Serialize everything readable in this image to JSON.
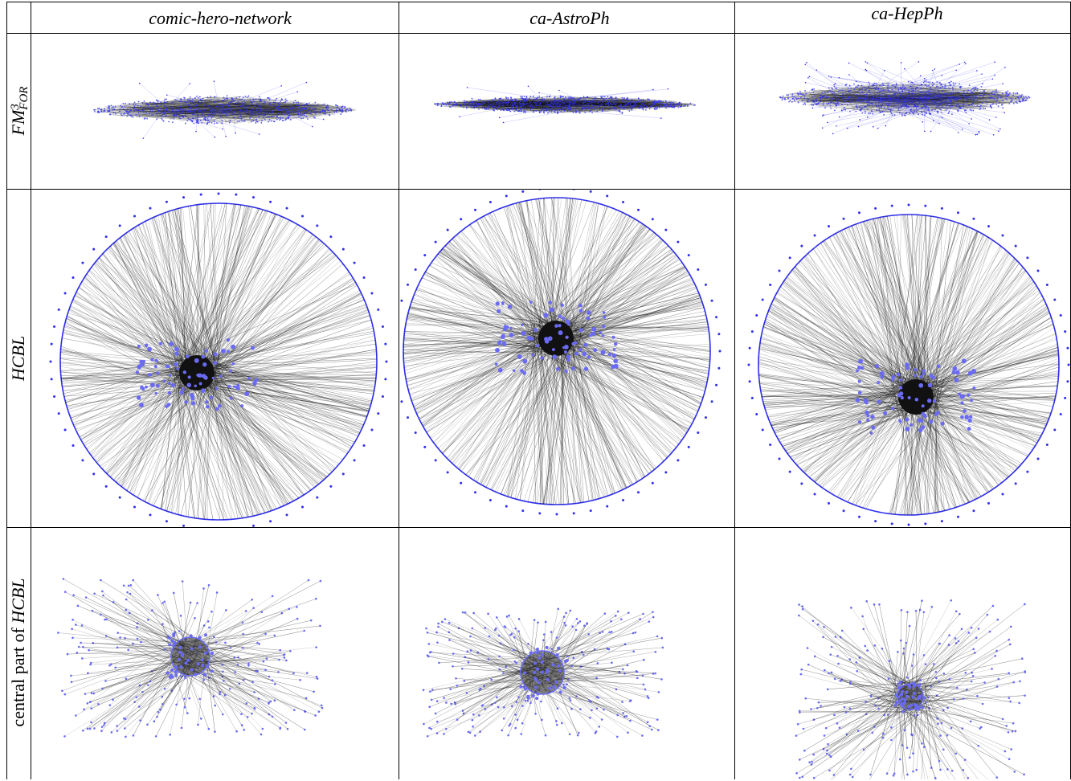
{
  "columns": [
    "comic-hero-network",
    "ca-AstroPh",
    "ca-HepPh"
  ],
  "rows": {
    "fm3": {
      "base": "FM",
      "sup": "3",
      "sub": "FOR"
    },
    "hcbl": "HCBL",
    "central": {
      "prefix": "central part of ",
      "emph": "HCBL"
    }
  },
  "colors": {
    "node": "#2f2ff0",
    "edge": "#111111",
    "node_light": "#6a6af5"
  }
}
